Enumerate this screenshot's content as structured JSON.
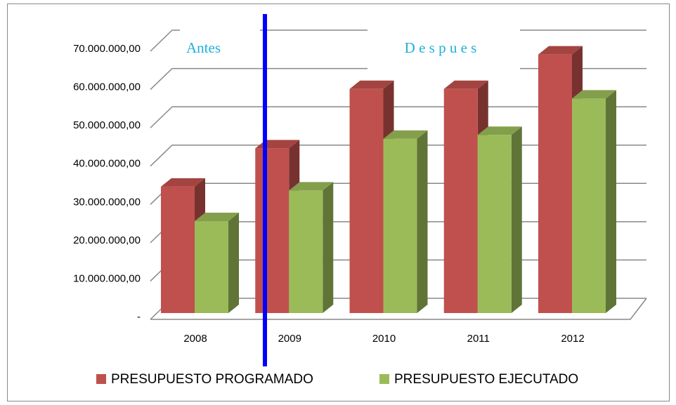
{
  "chart_data": {
    "type": "bar3d",
    "categories": [
      "2008",
      "2009",
      "2010",
      "2011",
      "2012"
    ],
    "series": [
      {
        "name": "PRESUPUESTO PROGRAMADO",
        "color": "#c0504d",
        "values": [
          33000000,
          43000000,
          58500000,
          58500000,
          67500000
        ]
      },
      {
        "name": "PRESUPUESTO EJECUTADO",
        "color": "#9bbb59",
        "values": [
          24000000,
          32000000,
          45500000,
          46500000,
          56000000
        ]
      }
    ],
    "ylim": [
      0,
      70000000
    ],
    "yticks": [
      {
        "value": 0,
        "label": "-"
      },
      {
        "value": 10000000,
        "label": "10.000.000,00"
      },
      {
        "value": 20000000,
        "label": "20.000.000,00"
      },
      {
        "value": 30000000,
        "label": "30.000.000,00"
      },
      {
        "value": 40000000,
        "label": "40.000.000,00"
      },
      {
        "value": 50000000,
        "label": "50.000.000,00"
      },
      {
        "value": 60000000,
        "label": "60.000.000,00"
      },
      {
        "value": 70000000,
        "label": "70.000.000,00"
      }
    ],
    "grid": true,
    "legend": "bottom",
    "annotations": [
      "Antes",
      "D e s p u e s"
    ]
  }
}
